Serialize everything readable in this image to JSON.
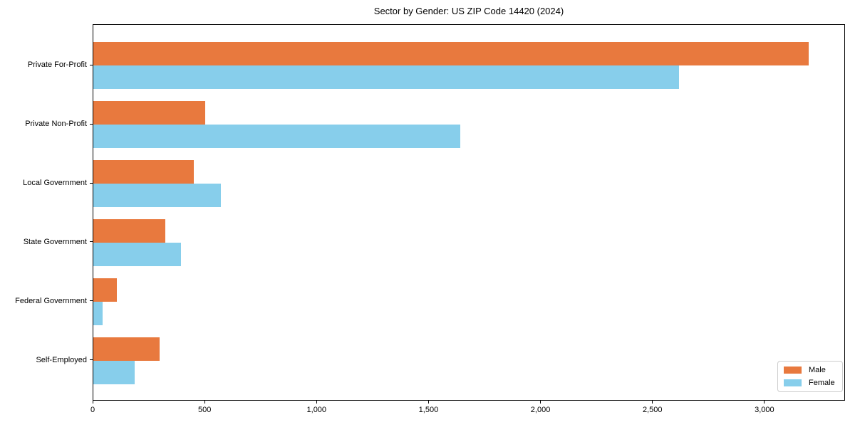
{
  "figure": {
    "title": "Sector by Gender: US ZIP Code 14420 (2024)"
  },
  "chart_data": {
    "type": "bar",
    "orientation": "horizontal",
    "title": "Sector by Gender: US ZIP Code 14420 (2024)",
    "categories": [
      "Private For-Profit",
      "Private Non-Profit",
      "Local Government",
      "State Government",
      "Federal Government",
      "Self-Employed"
    ],
    "series": [
      {
        "name": "Male",
        "color": "#e8793e",
        "values": [
          3195,
          500,
          450,
          320,
          105,
          295
        ]
      },
      {
        "name": "Female",
        "color": "#87ceeb",
        "values": [
          2615,
          1640,
          570,
          390,
          40,
          185
        ]
      }
    ],
    "xlabel": "",
    "ylabel": "",
    "xlim": [
      0,
      3360
    ],
    "xticks": [
      {
        "value": 0,
        "label": "0"
      },
      {
        "value": 500,
        "label": "500"
      },
      {
        "value": 1000,
        "label": "1,000"
      },
      {
        "value": 1500,
        "label": "1,500"
      },
      {
        "value": 2000,
        "label": "2,000"
      },
      {
        "value": 2500,
        "label": "2,500"
      },
      {
        "value": 3000,
        "label": "3,000"
      }
    ],
    "grid": false,
    "legend_position": "lower right",
    "plot_background": "#ffffff",
    "spine_color": "#000000"
  }
}
